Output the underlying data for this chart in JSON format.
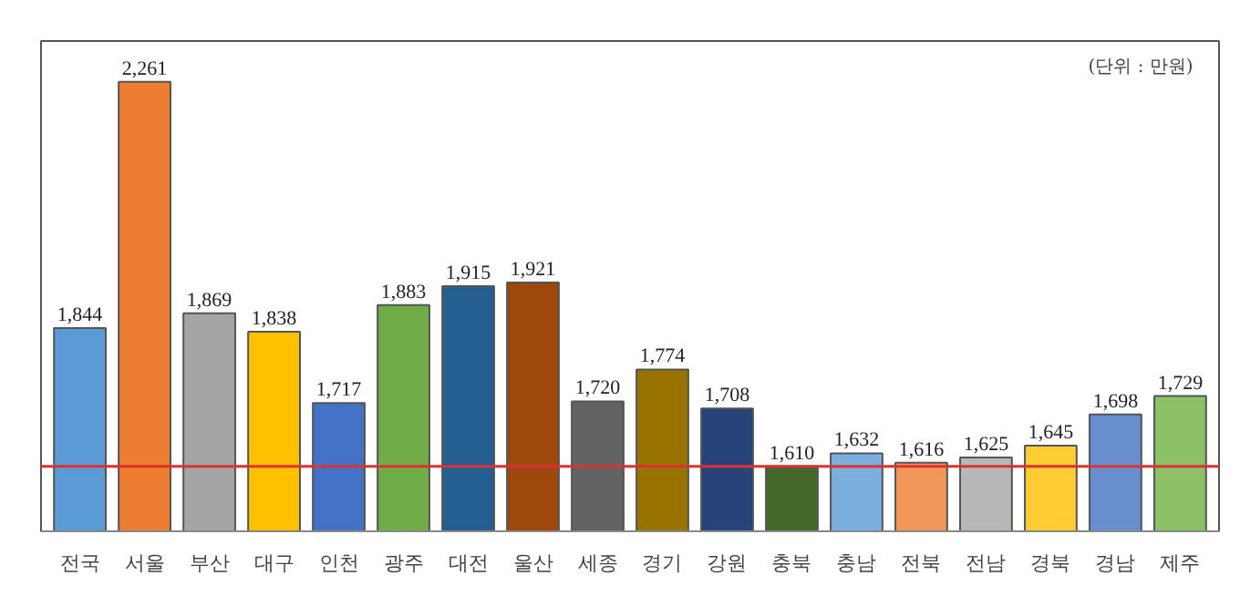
{
  "chart_data": {
    "type": "bar",
    "categories": [
      "전국",
      "서울",
      "부산",
      "대구",
      "인천",
      "광주",
      "대전",
      "울산",
      "세종",
      "경기",
      "강원",
      "충북",
      "충남",
      "전북",
      "전남",
      "경북",
      "경남",
      "제주"
    ],
    "values": [
      1844,
      2261,
      1869,
      1838,
      1717,
      1883,
      1915,
      1921,
      1720,
      1774,
      1708,
      1610,
      1632,
      1616,
      1625,
      1645,
      1698,
      1729
    ],
    "value_labels": [
      "1,844",
      "2,261",
      "1,869",
      "1,838",
      "1,717",
      "1,883",
      "1,915",
      "1,921",
      "1,720",
      "1,774",
      "1,708",
      "1,610",
      "1,632",
      "1,616",
      "1,625",
      "1,645",
      "1,698",
      "1,729"
    ],
    "colors": [
      "#5b9bd5",
      "#ed7d31",
      "#a5a5a5",
      "#ffc000",
      "#4472c4",
      "#70ad47",
      "#255e91",
      "#9e480e",
      "#636363",
      "#997300",
      "#264478",
      "#43682b",
      "#7cafdd",
      "#f1975a",
      "#b7b7b7",
      "#ffcd33",
      "#698ed0",
      "#8cc168"
    ],
    "annotations": [
      "(단위 : 만원)"
    ],
    "ref_lines": [
      {
        "axis": "y",
        "value": 1610,
        "color": "#e03030"
      }
    ],
    "ylim": [
      1500,
      2330
    ],
    "tick_labels": "x",
    "grid": false
  }
}
